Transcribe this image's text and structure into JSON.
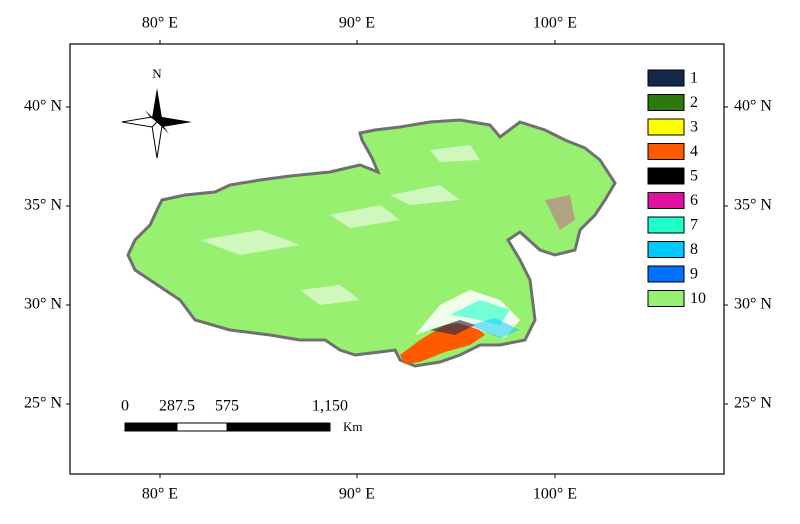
{
  "map": {
    "top_labels": [
      "80° E",
      "90° E",
      "100° E"
    ],
    "bottom_labels": [
      "80° E",
      "90° E",
      "100° E"
    ],
    "left_labels": [
      "40° N",
      "35° N",
      "30° N",
      "25° N"
    ],
    "right_labels": [
      "40° N",
      "35° N",
      "30° N",
      "25° N"
    ],
    "north": "N",
    "legend": [
      {
        "label": "1",
        "color": "#14294a"
      },
      {
        "label": "2",
        "color": "#2a7a10"
      },
      {
        "label": "3",
        "color": "#ffff00"
      },
      {
        "label": "4",
        "color": "#ff5a00"
      },
      {
        "label": "5",
        "color": "#000000"
      },
      {
        "label": "6",
        "color": "#e010a0"
      },
      {
        "label": "7",
        "color": "#20ffc8"
      },
      {
        "label": "8",
        "color": "#00c8ff"
      },
      {
        "label": "9",
        "color": "#0070ff"
      },
      {
        "label": "10",
        "color": "#98f070"
      }
    ],
    "scale": {
      "labels": [
        "0",
        "287.5",
        "575",
        "1,150"
      ],
      "unit": "Km"
    }
  }
}
